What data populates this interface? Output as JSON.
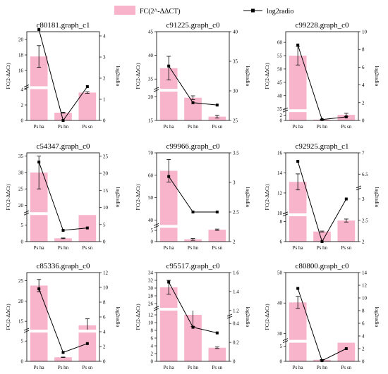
{
  "legend": {
    "bar_label": "FC(2^-ΔΔCT)",
    "line_label": "log2radio"
  },
  "colors": {
    "bar": "#f8b4cb",
    "line": "#000000"
  },
  "chart_data": [
    {
      "type": "bar",
      "title": "c80181.graph_c1",
      "categories": [
        "Ps ha",
        "Ps hn",
        "Ps sn"
      ],
      "ylabel": "FC(2-ΔΔCt)",
      "y2label": "log2radio",
      "values": [
        17.8,
        1.0,
        3.6
      ],
      "errors": [
        1.4,
        0.05,
        0.1
      ],
      "line": [
        4.3,
        0.0,
        1.6
      ],
      "ylim": [
        0,
        21
      ],
      "yticks": [
        0,
        2,
        4,
        16,
        18,
        20
      ],
      "y_break": [
        4,
        14
      ],
      "y2lim": [
        0,
        4.2
      ],
      "y2ticks": [
        0,
        1,
        2,
        3,
        4
      ]
    },
    {
      "type": "bar",
      "title": "c91225.graph_c0",
      "categories": [
        "Ps ha",
        "Ps hn",
        "Ps sn"
      ],
      "ylabel": "FC(2-ΔΔCt)",
      "y2label": "log2radio",
      "values": [
        37.3,
        19.8,
        15.8
      ],
      "errors": [
        2.5,
        0.4,
        0.3
      ],
      "line": [
        34.2,
        28.0,
        27.6
      ],
      "ylim": [
        15,
        45
      ],
      "yticks": [
        15,
        20,
        35,
        40,
        45
      ],
      "y_break": [
        21,
        33
      ],
      "y2lim": [
        25,
        40
      ],
      "y2ticks": [
        25,
        30,
        35,
        40
      ]
    },
    {
      "type": "bar",
      "title": "c99228.graph_c0",
      "categories": [
        "Ps ha",
        "Ps hn",
        "Ps sn"
      ],
      "ylabel": "FC(2-ΔΔCt)",
      "y2label": "log2radio",
      "values": [
        55.0,
        0.3,
        2.1
      ],
      "errors": [
        3.5,
        0.1,
        0.6
      ],
      "line": [
        8.5,
        0.1,
        0.4
      ],
      "ylim": [
        0,
        64
      ],
      "yticks": [
        0,
        2,
        35,
        40,
        45,
        50,
        55,
        60
      ],
      "y_break": [
        3,
        35
      ],
      "y2lim": [
        0,
        10
      ],
      "y2ticks": [
        0,
        2,
        4,
        6,
        8,
        10
      ]
    },
    {
      "type": "bar",
      "title": "c54347.graph_c0",
      "categories": [
        "Ps ha",
        "Ps hn",
        "Ps sn"
      ],
      "ylabel": "FC(2-ΔΔCt)",
      "y2label": "log2radio",
      "values": [
        30.0,
        1.0,
        9.0
      ],
      "errors": [
        5.0,
        0.1,
        0.3
      ],
      "line": [
        23.3,
        3.3,
        4.0
      ],
      "ylim": [
        0,
        36
      ],
      "yticks": [
        0,
        5,
        20,
        25,
        30,
        35
      ],
      "y_break": [
        8,
        18
      ],
      "y2lim": [
        0,
        26
      ],
      "y2ticks": [
        0,
        5,
        10,
        15,
        20,
        25
      ]
    },
    {
      "type": "bar",
      "title": "c99966.graph_c0",
      "categories": [
        "Ps ha",
        "Ps hn",
        "Ps sn"
      ],
      "ylabel": "FC(2-ΔΔCt)",
      "y2label": "log2radio",
      "values": [
        62.0,
        1.0,
        5.3
      ],
      "errors": [
        5.0,
        0.4,
        0.3
      ],
      "line": [
        3.1,
        2.5,
        2.5
      ],
      "ylim": [
        0,
        70
      ],
      "yticks": [
        0,
        5,
        40,
        50,
        60,
        70
      ],
      "y_break": [
        6,
        38
      ],
      "y2lim": [
        2.0,
        3.5
      ],
      "y2ticks": [
        2.0,
        2.5,
        3.0,
        3.5
      ]
    },
    {
      "type": "bar",
      "title": "c92925.graph_c1",
      "categories": [
        "Ps ha",
        "Ps hn",
        "Ps sn"
      ],
      "ylabel": "FC(2-ΔΔCt)",
      "y2label": "log2radio",
      "values": [
        13.1,
        7.0,
        8.1
      ],
      "errors": [
        0.8,
        0.05,
        0.15
      ],
      "line": [
        6.8,
        2.0,
        3.0
      ],
      "ylim": [
        6,
        16
      ],
      "yticks": [
        6,
        8,
        10,
        12,
        14,
        16
      ],
      "y_break": [
        8.5,
        10
      ],
      "y2lim": [
        2.0,
        7.0
      ],
      "y2ticks": [
        2.0,
        2.5,
        3.0,
        6.5,
        7.0
      ],
      "y2_break": [
        3.2,
        6.2
      ]
    },
    {
      "type": "bar",
      "title": "c85336.graph_c0",
      "categories": [
        "Ps ha",
        "Ps hn",
        "Ps sn"
      ],
      "ylabel": "FC(2-ΔΔCt)",
      "y2label": "log2radio",
      "values": [
        23.8,
        1.0,
        14.0
      ],
      "errors": [
        1.5,
        0.05,
        1.6
      ],
      "line": [
        9.8,
        1.2,
        2.4
      ],
      "ylim": [
        0,
        27
      ],
      "yticks": [
        0,
        5,
        15,
        20,
        25
      ],
      "y_break": [
        7,
        13
      ],
      "y2lim": [
        0,
        12
      ],
      "y2ticks": [
        0,
        2,
        4,
        6,
        8,
        10,
        12
      ]
    },
    {
      "type": "bar",
      "title": "c95517.graph_c0",
      "categories": [
        "Ps ha",
        "Ps hn",
        "Ps sn"
      ],
      "ylabel": "FC(2-ΔΔCt)",
      "y2label": "log2radio",
      "values": [
        30.2,
        12.0,
        3.5
      ],
      "errors": [
        1.8,
        3.0,
        0.2
      ],
      "line": [
        1.5,
        0.36,
        0.3
      ],
      "ylim": [
        0,
        34
      ],
      "yticks": [
        0,
        2,
        4,
        6,
        8,
        10,
        12,
        26,
        28,
        30,
        32,
        34
      ],
      "y_break": [
        13,
        25
      ],
      "y2lim": [
        0,
        1.6
      ],
      "y2ticks": [
        0.0,
        0.2,
        0.4,
        1.2,
        1.4,
        1.6
      ],
      "y2_break": [
        0.45,
        1.15
      ]
    },
    {
      "type": "bar",
      "title": "c80800.graph_c0",
      "categories": [
        "Ps ha",
        "Ps hn",
        "Ps sn"
      ],
      "ylabel": "FC(2-ΔΔCt)",
      "y2label": "log2radio",
      "values": [
        40.2,
        0.5,
        20.0
      ],
      "errors": [
        2.0,
        0.1,
        1.5
      ],
      "line": [
        11.5,
        0.1,
        2.0
      ],
      "ylim": [
        0,
        50
      ],
      "yticks": [
        0,
        5,
        30,
        40,
        50
      ],
      "y_break": [
        6,
        28
      ],
      "y2lim": [
        0,
        14
      ],
      "y2ticks": [
        0,
        2,
        4,
        6,
        8,
        10,
        12,
        14
      ]
    }
  ]
}
